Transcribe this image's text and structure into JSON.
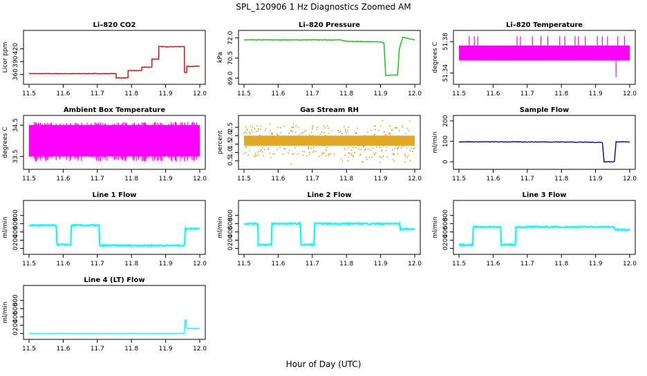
{
  "title": "SPL_120906  1 Hz Diagnostics Zoomed AM",
  "xlabel": "Hour of Day (UTC)",
  "chart_data": [
    {
      "type": "line",
      "title": "Li–820 CO2",
      "ylabel": "Licor ppm",
      "xlim": [
        11.5,
        12.0
      ],
      "ylim": [
        345,
        455
      ],
      "xticks": [
        "11.5",
        "11.6",
        "11.7",
        "11.8",
        "11.9",
        "12.0"
      ],
      "yticks": [
        "360",
        "390",
        "420"
      ],
      "color": "#dd0000",
      "noise": 0.6,
      "series": [
        {
          "x": [
            11.5,
            11.755,
            11.755,
            11.79,
            11.79,
            11.83,
            11.83,
            11.86,
            11.86,
            11.88,
            11.88,
            11.955,
            11.955,
            11.962,
            11.962,
            12.0
          ],
          "y": [
            362,
            362,
            352,
            352,
            369,
            369,
            377,
            377,
            396,
            396,
            425,
            425,
            365,
            365,
            379,
            379
          ]
        }
      ]
    },
    {
      "type": "line",
      "title": "Li–820 Pressure",
      "ylabel": "kPa",
      "xlim": [
        11.5,
        12.0
      ],
      "ylim": [
        68.8,
        72.3
      ],
      "xticks": [
        "11.5",
        "11.6",
        "11.7",
        "11.8",
        "11.9",
        "12.0"
      ],
      "yticks": [
        "69.0",
        "70.5",
        "72.0"
      ],
      "color": "#00cc00",
      "noise": 0.02,
      "series": [
        {
          "x": [
            11.5,
            11.78,
            11.8,
            11.9,
            11.91,
            11.915,
            11.95,
            11.955,
            11.965,
            12.0
          ],
          "y": [
            71.85,
            71.85,
            71.75,
            71.7,
            71.6,
            69.2,
            69.25,
            71.2,
            72.05,
            71.85
          ]
        }
      ]
    },
    {
      "type": "line",
      "title": "Li–820 Temperature",
      "ylabel": "degrees C",
      "xlim": [
        11.5,
        12.0
      ],
      "ylim": [
        51.33,
        51.39
      ],
      "xticks": [
        "11.5",
        "11.6",
        "11.7",
        "11.8",
        "11.9",
        "12.0"
      ],
      "yticks": [
        "51.34",
        "51.38"
      ],
      "color": "#ff00ff",
      "band": [
        51.356,
        51.375
      ],
      "spike_top": 51.387,
      "spikes": [
        11.53,
        11.545,
        11.555,
        11.67,
        11.68,
        11.715,
        11.74,
        11.76,
        11.795,
        11.81,
        11.84,
        11.85,
        11.87,
        11.905,
        11.92,
        11.935,
        11.965,
        11.985
      ],
      "dip": {
        "x": 11.96,
        "y": 51.335
      }
    },
    {
      "type": "line",
      "title": "Ambient Box Temperature",
      "ylabel": "degrees C",
      "xlim": [
        11.5,
        12.0
      ],
      "ylim": [
        33.2,
        34.7
      ],
      "xticks": [
        "11.5",
        "11.6",
        "11.7",
        "11.8",
        "11.9",
        "12.0"
      ],
      "yticks": [
        "33.5",
        "34.5"
      ],
      "color": "#ff00ff",
      "band": [
        33.5,
        34.5
      ]
    },
    {
      "type": "scatter",
      "title": "Gas Stream RH",
      "ylabel": "percent",
      "xlim": [
        11.5,
        12.0
      ],
      "ylim": [
        0.2,
        3.0
      ],
      "xticks": [
        "11.5",
        "11.6",
        "11.7",
        "11.8",
        "11.9",
        "12.0"
      ],
      "yticks": [
        "0.5",
        "1.0",
        "1.5",
        "2.0",
        "2.5"
      ],
      "color": "#dd9900",
      "band": [
        1.4,
        2.0
      ]
    },
    {
      "type": "line",
      "title": "Sample Flow",
      "ylabel": "ml/min",
      "xlim": [
        11.5,
        12.0
      ],
      "ylim": [
        -20,
        210
      ],
      "xticks": [
        "11.5",
        "11.6",
        "11.7",
        "11.8",
        "11.9",
        "12.0"
      ],
      "yticks": [
        "0",
        "100",
        "200"
      ],
      "color": "#0000cc",
      "noise": 1.5,
      "series": [
        {
          "x": [
            11.5,
            11.8,
            11.92,
            11.925,
            11.955,
            11.96,
            12.0
          ],
          "y": [
            98,
            97,
            95,
            0,
            0,
            98,
            97
          ]
        }
      ]
    },
    {
      "type": "line",
      "title": "Line 1 Flow",
      "ylabel": "ml/min",
      "xlim": [
        11.5,
        12.0
      ],
      "ylim": [
        -60,
        1080
      ],
      "xticks": [
        "11.5",
        "11.6",
        "11.7",
        "11.8",
        "11.9",
        "12.0"
      ],
      "yticks": [
        "0",
        "200",
        "400",
        "600",
        "800"
      ],
      "color": "#00ffff",
      "noise": 18,
      "series": [
        {
          "x": [
            11.5,
            11.58,
            11.582,
            11.622,
            11.624,
            11.705,
            11.707,
            11.955,
            11.958,
            12.0
          ],
          "y": [
            560,
            560,
            90,
            90,
            560,
            560,
            70,
            70,
            480,
            480
          ]
        }
      ]
    },
    {
      "type": "line",
      "title": "Line 2 Flow",
      "ylabel": "ml/min",
      "xlim": [
        11.5,
        12.0
      ],
      "ylim": [
        -60,
        1080
      ],
      "xticks": [
        "11.5",
        "11.6",
        "11.7",
        "11.8",
        "11.9",
        "12.0"
      ],
      "yticks": [
        "0",
        "200",
        "400",
        "600",
        "800"
      ],
      "color": "#00ffff",
      "noise": 18,
      "series": [
        {
          "x": [
            11.5,
            11.54,
            11.542,
            11.58,
            11.582,
            11.665,
            11.667,
            11.705,
            11.707,
            11.955,
            11.958,
            12.0
          ],
          "y": [
            600,
            600,
            90,
            90,
            600,
            600,
            90,
            90,
            600,
            600,
            470,
            470
          ]
        }
      ]
    },
    {
      "type": "line",
      "title": "Line 3 Flow",
      "ylabel": "ml/min",
      "xlim": [
        11.5,
        12.0
      ],
      "ylim": [
        -60,
        1080
      ],
      "xticks": [
        "11.5",
        "11.6",
        "11.7",
        "11.8",
        "11.9",
        "12.0"
      ],
      "yticks": [
        "0",
        "200",
        "400",
        "600",
        "800"
      ],
      "color": "#00ffff",
      "noise": 18,
      "series": [
        {
          "x": [
            11.5,
            11.54,
            11.542,
            11.622,
            11.624,
            11.665,
            11.667,
            11.955,
            11.958,
            12.0
          ],
          "y": [
            85,
            85,
            520,
            520,
            85,
            85,
            520,
            520,
            450,
            450
          ]
        }
      ]
    },
    {
      "type": "line",
      "title": "Line 4 (LT) Flow",
      "ylabel": "ml/min",
      "xlim": [
        11.5,
        12.0
      ],
      "ylim": [
        -60,
        1080
      ],
      "xticks": [
        "11.5",
        "11.6",
        "11.7",
        "11.8",
        "11.9",
        "12.0"
      ],
      "yticks": [
        "0",
        "200",
        "400",
        "600",
        "800"
      ],
      "color": "#00ffff",
      "noise": 2,
      "series": [
        {
          "x": [
            11.5,
            11.955,
            11.957,
            11.96,
            11.962,
            12.0
          ],
          "y": [
            0,
            0,
            320,
            330,
            120,
            120
          ]
        }
      ]
    }
  ]
}
